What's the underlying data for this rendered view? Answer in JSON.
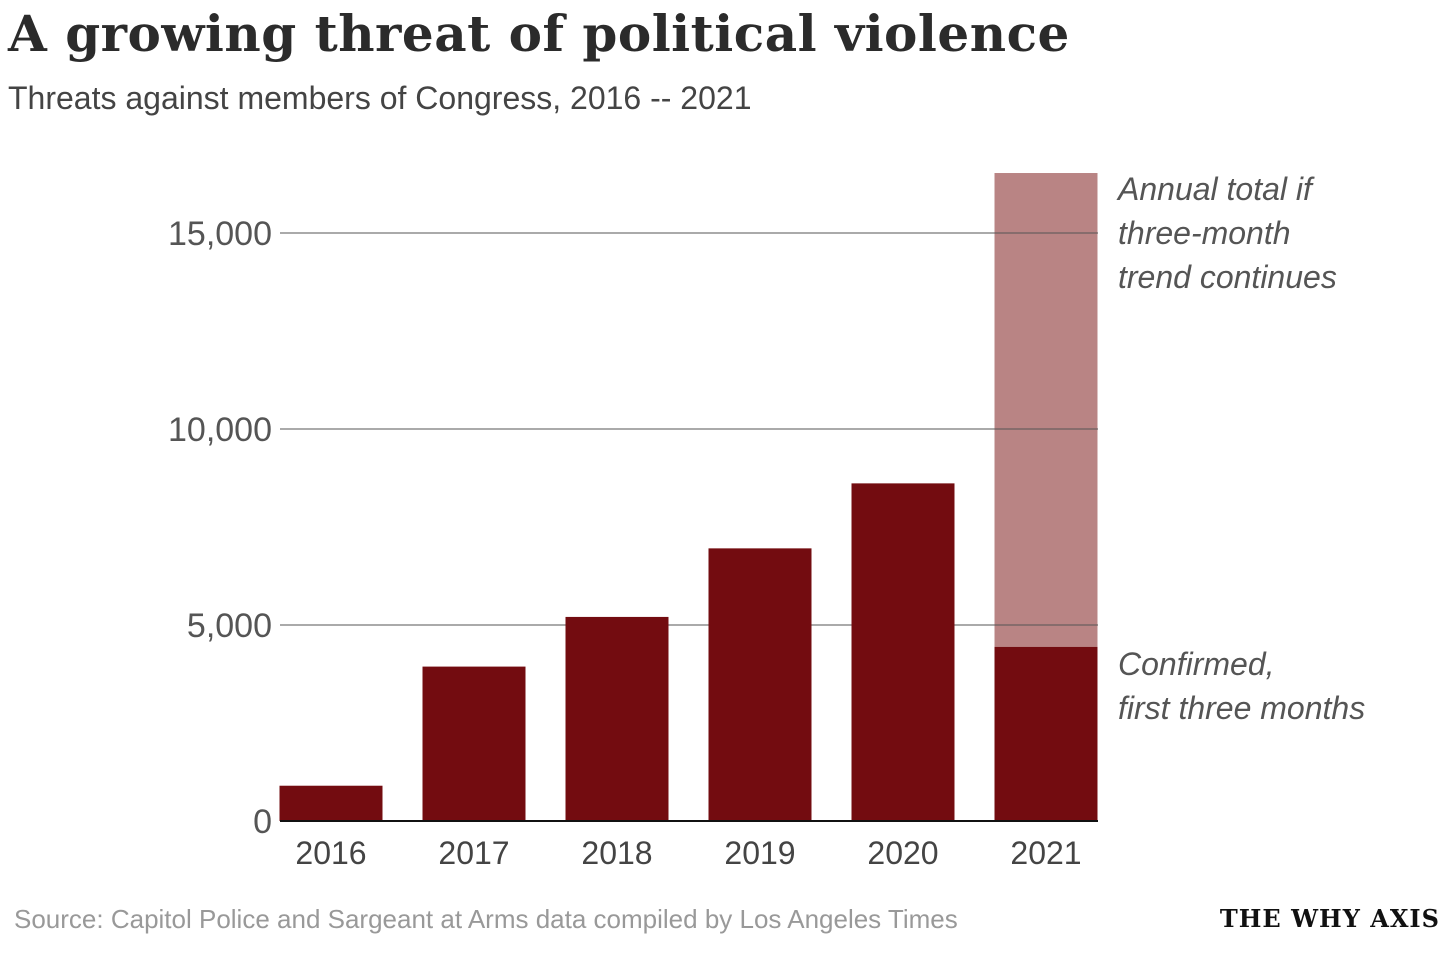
{
  "chart_data": {
    "type": "bar",
    "title": "A growing threat of political violence",
    "subtitle": "Threats against members of Congress, 2016 -- 2021",
    "categories": [
      "2016",
      "2017",
      "2018",
      "2019",
      "2020",
      "2021"
    ],
    "series": [
      {
        "name": "Confirmed",
        "values": [
          900,
          3939,
          5206,
          6955,
          8613,
          4440
        ],
        "color": "#730c10"
      },
      {
        "name": "Annual total if three-month trend continues",
        "values": [
          null,
          null,
          null,
          null,
          null,
          16530
        ],
        "color": "#b98484"
      }
    ],
    "yticks": [
      0,
      5000,
      10000,
      15000
    ],
    "ytick_labels": [
      "0",
      "5,000",
      "10,000",
      "15,000"
    ],
    "ylim": [
      0,
      17000
    ],
    "xlabel": "",
    "ylabel": "",
    "grid": true,
    "annotations": {
      "projected": [
        "Annual total if",
        "three-month",
        "trend continues"
      ],
      "confirmed": [
        "Confirmed,",
        "first three months"
      ]
    },
    "source": "Source: Capitol Police and Sargeant at Arms data compiled by Los Angeles Times",
    "brand": "THE WHY AXIS"
  }
}
